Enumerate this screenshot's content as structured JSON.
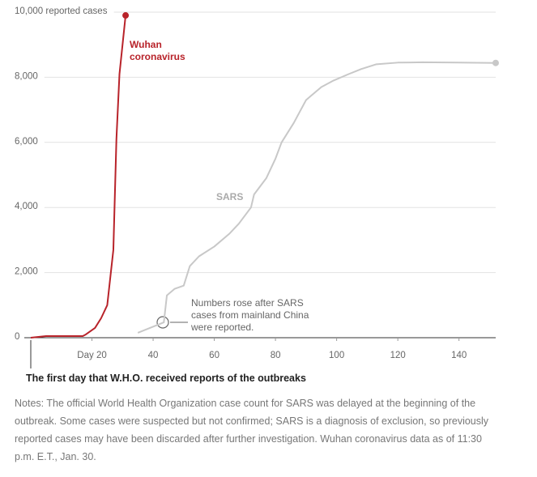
{
  "chart_data": {
    "type": "line",
    "subtitle": "The first day that W.H.O. received reports of the outbreaks",
    "notes": "Notes: The official World Health Organization case count for SARS was delayed at the beginning of the outbreak. Some cases were suspected but not confirmed; SARS is a diagnosis of exclusion, so previously reported cases may have been discarded after further investigation. Wuhan coronavirus data as of 11:30 p.m. E.T., Jan. 30.",
    "annotation": "Numbers rose after SARS cases from mainland China were reported.",
    "xlim": [
      0,
      152
    ],
    "xticks": [
      {
        "value": 20,
        "label": "Day 20"
      },
      40,
      60,
      80,
      100,
      120,
      140
    ],
    "ylim": [
      0,
      10000
    ],
    "yticks": [
      0,
      {
        "value": 2000,
        "label": "2,000"
      },
      {
        "value": 4000,
        "label": "4,000"
      },
      {
        "value": 6000,
        "label": "6,000"
      },
      {
        "value": 8000,
        "label": "8,000"
      },
      {
        "value": 10000,
        "label": "10,000 reported cases"
      }
    ],
    "grid": true,
    "series": [
      {
        "name": "Wuhan coronavirus",
        "color": "#b8232a",
        "x": [
          0,
          5,
          17,
          18,
          21,
          23,
          25,
          27,
          28,
          29,
          31
        ],
        "values": [
          0,
          50,
          50,
          100,
          300,
          600,
          1000,
          2700,
          6100,
          8100,
          9900
        ]
      },
      {
        "name": "SARS",
        "color": "#c8c8c8",
        "x": [
          35,
          43.5,
          44.5,
          47,
          50,
          52,
          55,
          60,
          65,
          68,
          72,
          73,
          77,
          80,
          82,
          86,
          90,
          95,
          99,
          104,
          108,
          113,
          120,
          128,
          140,
          152
        ],
        "values": [
          150,
          470,
          1300,
          1500,
          1600,
          2200,
          2500,
          2800,
          3200,
          3500,
          4000,
          4400,
          4900,
          5500,
          6000,
          6600,
          7300,
          7700,
          7900,
          8100,
          8250,
          8400,
          8450,
          8460,
          8450,
          8440
        ]
      }
    ]
  }
}
